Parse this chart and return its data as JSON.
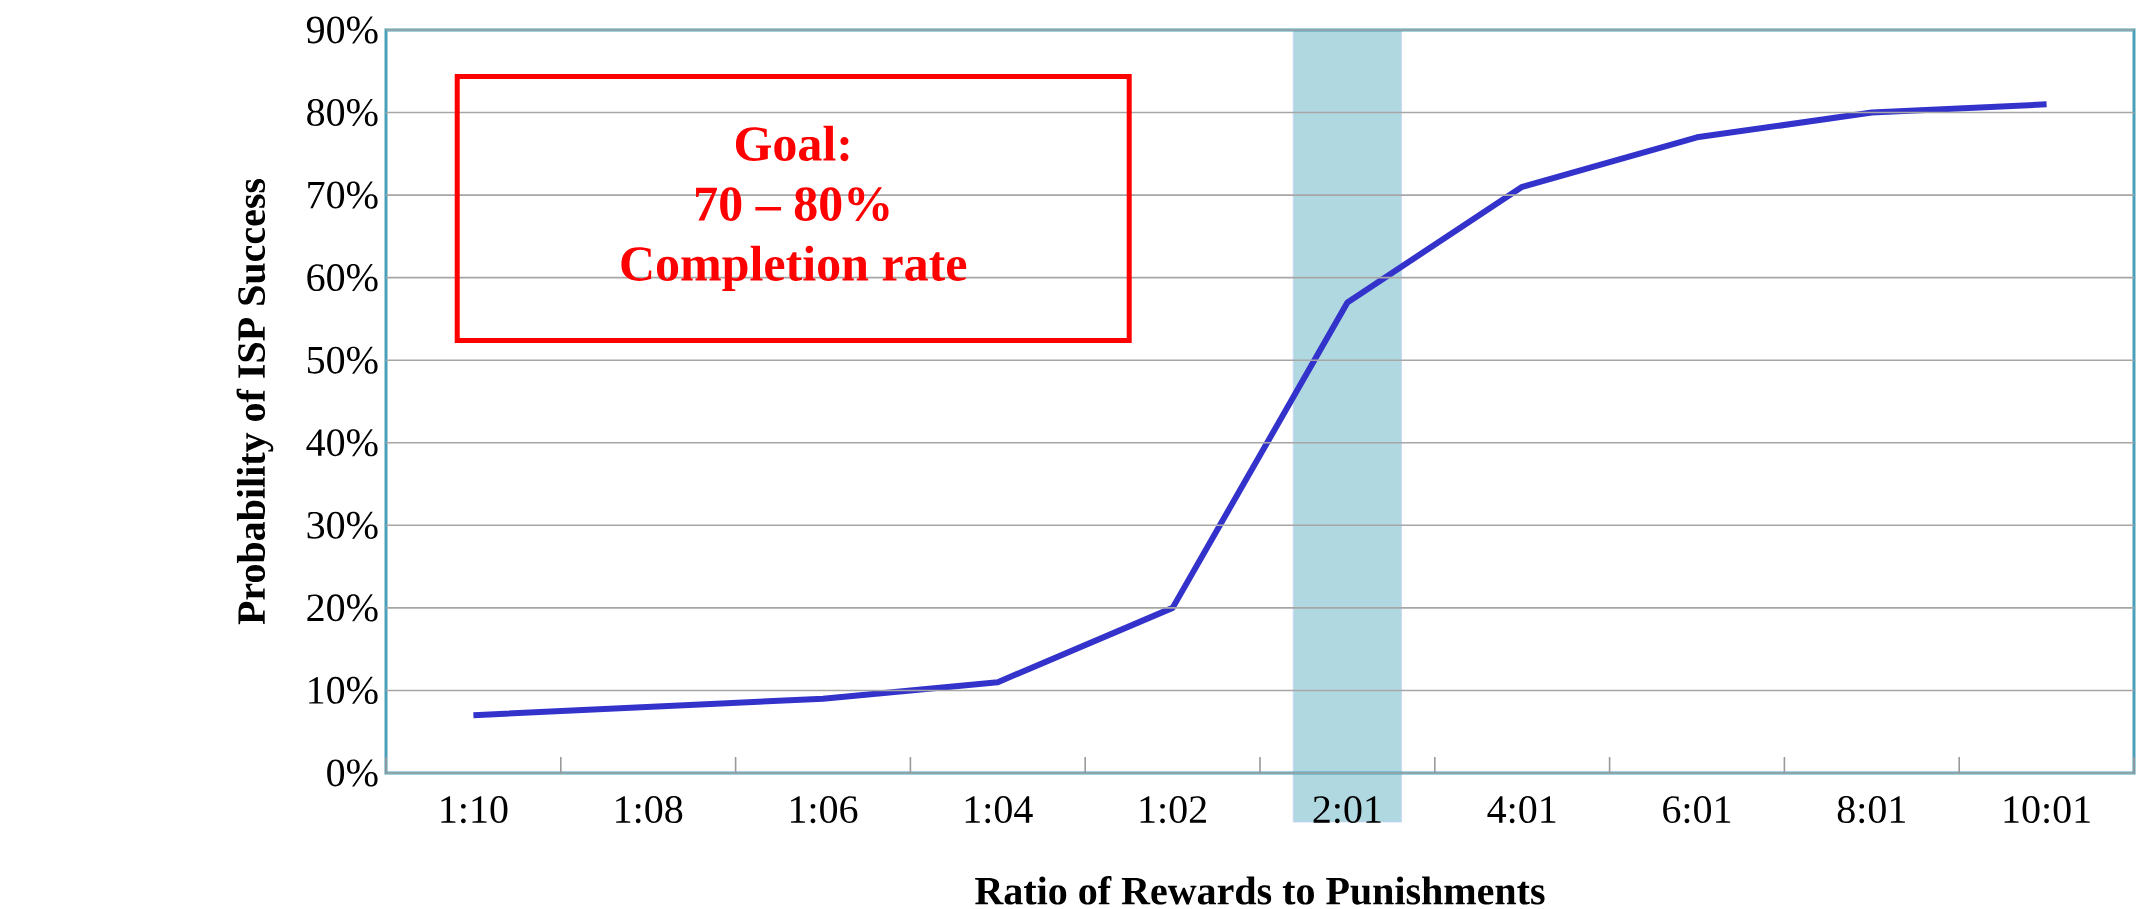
{
  "chart_data": {
    "type": "line",
    "xlabel": "Ratio of Rewards to Punishments",
    "ylabel": "Probability of ISP Success",
    "categories": [
      "1:10",
      "1:08",
      "1:06",
      "1:04",
      "1:02",
      "2:01",
      "4:01",
      "6:01",
      "8:01",
      "10:01"
    ],
    "series": [
      {
        "color": "#3333cc",
        "values": [
          7,
          8,
          9,
          11,
          20,
          57,
          71,
          77,
          80,
          81
        ]
      }
    ],
    "ylim": [
      0,
      90
    ],
    "yticks": [
      {
        "value": 0,
        "label": "0%"
      },
      {
        "value": 10,
        "label": "10%"
      },
      {
        "value": 20,
        "label": "20%"
      },
      {
        "value": 30,
        "label": "30%"
      },
      {
        "value": 40,
        "label": "40%"
      },
      {
        "value": 50,
        "label": "50%"
      },
      {
        "value": 60,
        "label": "60%"
      },
      {
        "value": 70,
        "label": "70%"
      },
      {
        "value": 80,
        "label": "80%"
      },
      {
        "value": 90,
        "label": "90%"
      }
    ],
    "grid": "y",
    "marker": "none",
    "line_style": "solid",
    "bands": [
      {
        "axis": "x",
        "from": "2:01",
        "to": "2:01",
        "color": "#b0d8e0"
      }
    ],
    "annotations": [
      "Goal:",
      "70 – 80%",
      "Completion rate"
    ]
  }
}
